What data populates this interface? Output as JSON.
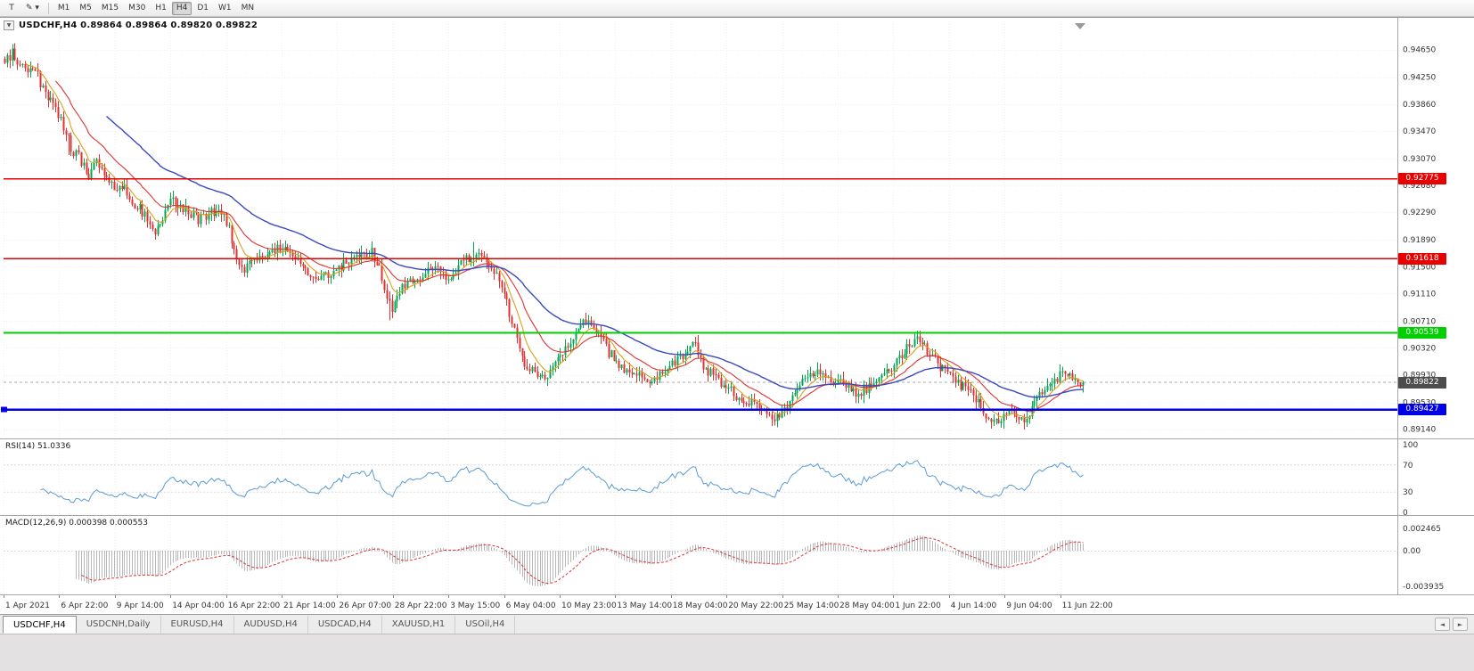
{
  "colors": {
    "up_candle": "#00a94f",
    "down_candle": "#e03232",
    "ma_fast": "#d8a01d",
    "ma_mid": "#e03232",
    "ma_slow": "#3a49c0",
    "rsi_line": "#5b9bd5",
    "macd_hist": "#b8b8b8",
    "macd_signal": "#e03232",
    "current_badge_bg": "#4d4d4d",
    "grid": "#f0f0f0",
    "axis_text": "#333333"
  },
  "icons": {
    "collapse": "▼"
  },
  "toolbar": {
    "pointer_label": "T",
    "draw_label": "✎ ▾",
    "timeframes": [
      "M1",
      "M5",
      "M15",
      "M30",
      "H1",
      "H4",
      "D1",
      "W1",
      "MN"
    ],
    "active_timeframe": "H4"
  },
  "chart": {
    "title_line": "USDCHF,H4 0.89864 0.89864 0.89820 0.89822",
    "symbol": "USDCHF",
    "period": "H4",
    "open": "0.89864",
    "high": "0.89864",
    "low": "0.89820",
    "close": "0.89822",
    "price_axis_labels": [
      "0.94650",
      "0.94250",
      "0.93860",
      "0.93470",
      "0.93070",
      "0.92680",
      "0.92290",
      "0.91890",
      "0.91500",
      "0.91110",
      "0.90710",
      "0.90320",
      "0.89930",
      "0.89530",
      "0.89140"
    ],
    "time_axis_labels": [
      "1 Apr 2021",
      "6 Apr 22:00",
      "9 Apr 14:00",
      "14 Apr 04:00",
      "16 Apr 22:00",
      "21 Apr 14:00",
      "26 Apr 07:00",
      "28 Apr 22:00",
      "3 May 15:00",
      "6 May 04:00",
      "10 May 23:00",
      "13 May 14:00",
      "18 May 04:00",
      "20 May 22:00",
      "25 May 14:00",
      "28 May 04:00",
      "1 Jun 22:00",
      "4 Jun 14:00",
      "9 Jun 04:00",
      "11 Jun 22:00"
    ]
  },
  "rsi": {
    "title": "RSI(14) 51.0336",
    "axis_labels": [
      "100",
      "70",
      "30",
      "0"
    ]
  },
  "macd": {
    "title": "MACD(12,26,9) 0.000398 0.000553",
    "axis_labels": [
      "0.002465",
      "0.00",
      "-0.003935"
    ]
  },
  "tabs": {
    "items": [
      "USDCHF,H4",
      "USDCNH,Daily",
      "EURUSD,H4",
      "AUDUSD,H4",
      "USDCAD,H4",
      "XAUUSD,H1",
      "USOil,H4"
    ],
    "active": "USDCHF,H4",
    "scroll_left": "◄",
    "scroll_right": "►"
  },
  "chart_data": {
    "type": "candlestick",
    "symbol": "USDCHF",
    "timeframe": "H4",
    "title": "USDCHF,H4",
    "y_range": [
      0.8902,
      0.9506
    ],
    "current_price": {
      "label": "0.89822",
      "value": 0.89822
    },
    "levels": [
      {
        "price": 0.92775,
        "label": "0.92775",
        "color": "#e80000",
        "width": 1.5,
        "type": "resistance"
      },
      {
        "price": 0.91618,
        "label": "0.91618",
        "color": "#e80000",
        "width": 1.5,
        "type": "resistance"
      },
      {
        "price": 0.90539,
        "label": "0.90539",
        "color": "#00cf00",
        "width": 2,
        "type": "support"
      },
      {
        "price": 0.89427,
        "label": "0.89427",
        "color": "#0000e8",
        "width": 2.5,
        "type": "support"
      }
    ],
    "price_path": [
      [
        5,
        0.9452
      ],
      [
        15,
        0.946
      ],
      [
        25,
        0.9438
      ],
      [
        38,
        0.9442
      ],
      [
        50,
        0.94
      ],
      [
        62,
        0.9378
      ],
      [
        72,
        0.9352
      ],
      [
        80,
        0.932
      ],
      [
        90,
        0.9305
      ],
      [
        100,
        0.9282
      ],
      [
        108,
        0.93
      ],
      [
        118,
        0.9288
      ],
      [
        128,
        0.9262
      ],
      [
        138,
        0.9272
      ],
      [
        148,
        0.9245
      ],
      [
        158,
        0.9232
      ],
      [
        168,
        0.9214
      ],
      [
        176,
        0.92
      ],
      [
        184,
        0.9226
      ],
      [
        192,
        0.9244
      ],
      [
        202,
        0.9238
      ],
      [
        212,
        0.923
      ],
      [
        222,
        0.9218
      ],
      [
        232,
        0.9226
      ],
      [
        242,
        0.9232
      ],
      [
        252,
        0.9222
      ],
      [
        262,
        0.918
      ],
      [
        270,
        0.914
      ],
      [
        278,
        0.9155
      ],
      [
        286,
        0.9166
      ],
      [
        296,
        0.9158
      ],
      [
        306,
        0.917
      ],
      [
        316,
        0.918
      ],
      [
        326,
        0.9168
      ],
      [
        336,
        0.9156
      ],
      [
        346,
        0.9142
      ],
      [
        356,
        0.9128
      ],
      [
        366,
        0.9138
      ],
      [
        376,
        0.9148
      ],
      [
        386,
        0.9152
      ],
      [
        396,
        0.9158
      ],
      [
        406,
        0.9164
      ],
      [
        416,
        0.9172
      ],
      [
        424,
        0.915
      ],
      [
        432,
        0.9118
      ],
      [
        440,
        0.909
      ],
      [
        448,
        0.9112
      ],
      [
        456,
        0.913
      ],
      [
        464,
        0.9122
      ],
      [
        472,
        0.9128
      ],
      [
        480,
        0.9142
      ],
      [
        488,
        0.9148
      ],
      [
        496,
        0.9136
      ],
      [
        504,
        0.913
      ],
      [
        512,
        0.915
      ],
      [
        520,
        0.9162
      ],
      [
        530,
        0.9158
      ],
      [
        540,
        0.9166
      ],
      [
        548,
        0.9152
      ],
      [
        556,
        0.914
      ],
      [
        564,
        0.9118
      ],
      [
        572,
        0.9078
      ],
      [
        580,
        0.904
      ],
      [
        588,
        0.9012
      ],
      [
        596,
        0.9
      ],
      [
        604,
        0.8992
      ],
      [
        612,
        0.8988
      ],
      [
        620,
        0.901
      ],
      [
        628,
        0.9024
      ],
      [
        636,
        0.9036
      ],
      [
        644,
        0.9054
      ],
      [
        652,
        0.9068
      ],
      [
        660,
        0.9072
      ],
      [
        668,
        0.906
      ],
      [
        676,
        0.9042
      ],
      [
        684,
        0.9024
      ],
      [
        692,
        0.901
      ],
      [
        700,
        0.9
      ],
      [
        710,
        0.8996
      ],
      [
        720,
        0.8988
      ],
      [
        730,
        0.8978
      ],
      [
        740,
        0.8992
      ],
      [
        750,
        0.9002
      ],
      [
        760,
        0.9012
      ],
      [
        770,
        0.903
      ],
      [
        778,
        0.9038
      ],
      [
        786,
        0.9014
      ],
      [
        794,
        0.8998
      ],
      [
        804,
        0.8986
      ],
      [
        814,
        0.8976
      ],
      [
        824,
        0.8964
      ],
      [
        834,
        0.8956
      ],
      [
        844,
        0.895
      ],
      [
        854,
        0.8942
      ],
      [
        864,
        0.8936
      ],
      [
        874,
        0.893
      ],
      [
        882,
        0.8948
      ],
      [
        890,
        0.8968
      ],
      [
        900,
        0.8982
      ],
      [
        910,
        0.8992
      ],
      [
        920,
        0.8998
      ],
      [
        930,
        0.899
      ],
      [
        940,
        0.8984
      ],
      [
        950,
        0.8974
      ],
      [
        960,
        0.8964
      ],
      [
        970,
        0.8972
      ],
      [
        980,
        0.8986
      ],
      [
        990,
        0.8996
      ],
      [
        1000,
        0.9004
      ],
      [
        1010,
        0.9018
      ],
      [
        1020,
        0.9035
      ],
      [
        1030,
        0.9042
      ],
      [
        1040,
        0.903
      ],
      [
        1050,
        0.9012
      ],
      [
        1060,
        0.8996
      ],
      [
        1070,
        0.8984
      ],
      [
        1080,
        0.8976
      ],
      [
        1090,
        0.8962
      ],
      [
        1100,
        0.8946
      ],
      [
        1110,
        0.8924
      ],
      [
        1120,
        0.892
      ],
      [
        1130,
        0.8938
      ],
      [
        1140,
        0.893
      ],
      [
        1148,
        0.8922
      ],
      [
        1156,
        0.894
      ],
      [
        1164,
        0.8962
      ],
      [
        1172,
        0.8975
      ],
      [
        1180,
        0.8985
      ],
      [
        1190,
        0.8992
      ],
      [
        1200,
        0.8988
      ],
      [
        1208,
        0.8984
      ],
      [
        1215,
        0.8982
      ]
    ],
    "forced_extremes": [
      [
        12,
        "hi",
        0.9465
      ],
      [
        76,
        "lo",
        0.9312
      ],
      [
        437,
        "lo",
        0.9072
      ],
      [
        530,
        "hi",
        0.9186
      ],
      [
        612,
        "lo",
        0.8984
      ],
      [
        660,
        "hi",
        0.9078
      ],
      [
        778,
        "hi",
        0.9042
      ],
      [
        874,
        "lo",
        0.8928
      ],
      [
        1028,
        "hi",
        0.9046
      ],
      [
        1113,
        "lo",
        0.8915
      ],
      [
        1148,
        "lo",
        0.8918
      ]
    ],
    "indicators": {
      "rsi": {
        "period": 14,
        "last_value": 51.0336,
        "levels": [
          70,
          30
        ],
        "range": [
          0,
          100
        ]
      },
      "macd": {
        "fast": 12,
        "slow": 26,
        "signal": 9,
        "last_macd": 0.000398,
        "last_signal": 0.000553,
        "axis_max": 0.002465,
        "axis_min": -0.003935
      }
    }
  }
}
